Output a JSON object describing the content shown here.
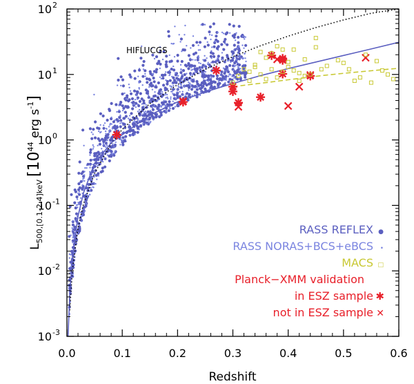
{
  "chart_data": {
    "type": "scatter",
    "title": "",
    "xlabel": "Redshift",
    "ylabel_main": "L",
    "ylabel_sub": "500,[0.1-2.4]keV",
    "ylabel_units": "[10",
    "ylabel_exp": "44",
    "ylabel_units2": " erg s",
    "ylabel_exp2": "-1",
    "ylabel_close": "]",
    "xlim": [
      0.0,
      0.6
    ],
    "ylim": [
      0.001,
      100
    ],
    "yscale": "log",
    "xticks": [
      0.0,
      0.1,
      0.2,
      0.3,
      0.4,
      0.5,
      0.6
    ],
    "xtick_labels": [
      "0.0",
      "0.1",
      "0.2",
      "0.3",
      "0.4",
      "0.5",
      "0.6"
    ],
    "ytick_exponents": [
      -3,
      -2,
      -1,
      0,
      1,
      2
    ],
    "ytick_base": "10",
    "ytick_exp_labels": [
      "-3",
      "-2",
      "-1",
      "0",
      "1",
      "2"
    ],
    "annotation": "HIFLUCGS",
    "legend": {
      "position": "bottom-right",
      "entries": [
        {
          "label": "RASS REFLEX",
          "symbol": "●",
          "color": "#5b5fc0"
        },
        {
          "label": "RASS NORAS+BCS+eBCS",
          "symbol": "•",
          "color": "#7b85e0"
        },
        {
          "label": "MACS",
          "symbol": "□",
          "color": "#c8c832"
        },
        {
          "label": "Planck−XMM validation",
          "symbol": "",
          "color": "#e8202a"
        },
        {
          "label": "in ESZ sample",
          "symbol": "✱",
          "color": "#e8202a"
        },
        {
          "label": "not in ESZ sample",
          "symbol": "✕",
          "color": "#e8202a"
        }
      ]
    },
    "curves": [
      {
        "name": "HIFLUCGS flux limit",
        "style": "dotted",
        "color": "#000000",
        "x": [
          0.005,
          0.01,
          0.02,
          0.03,
          0.05,
          0.08,
          0.1,
          0.15,
          0.2,
          0.25,
          0.3,
          0.35,
          0.4,
          0.45,
          0.5,
          0.55,
          0.6
        ],
        "y": [
          0.0025,
          0.0105,
          0.045,
          0.105,
          0.31,
          0.88,
          1.45,
          3.6,
          7.0,
          12.0,
          18.7,
          27.5,
          38.5,
          52.0,
          68.0,
          86.0,
          105.0
        ]
      },
      {
        "name": "RASS flux limit",
        "style": "solid",
        "color": "#5b5fc0",
        "x": [
          0.002,
          0.005,
          0.01,
          0.02,
          0.03,
          0.05,
          0.08,
          0.1,
          0.15,
          0.2,
          0.25,
          0.3,
          0.35,
          0.4,
          0.45,
          0.5,
          0.55,
          0.6
        ],
        "y": [
          0.00088,
          0.0041,
          0.0165,
          0.068,
          0.155,
          0.44,
          0.9,
          1.2,
          2.4,
          3.8,
          5.4,
          7.3,
          9.6,
          12.3,
          15.5,
          19.5,
          24.5,
          31.0
        ]
      },
      {
        "name": "MACS flux limit",
        "style": "dashed",
        "color": "#c8c832",
        "x": [
          0.3,
          0.33,
          0.36,
          0.4,
          0.43,
          0.46,
          0.5,
          0.53,
          0.56,
          0.6
        ],
        "y": [
          6.5,
          7.0,
          7.5,
          8.3,
          8.9,
          9.6,
          10.4,
          11.0,
          11.6,
          12.4
        ]
      }
    ],
    "series": [
      {
        "name": "Planck-XMM in ESZ sample",
        "marker": "asterisk",
        "color": "#e8202a",
        "x": [
          0.09,
          0.21,
          0.27,
          0.3,
          0.31,
          0.35,
          0.37,
          0.39,
          0.39,
          0.44,
          0.3,
          0.39
        ],
        "y": [
          1.2,
          3.8,
          11.5,
          5.5,
          3.7,
          4.5,
          19.5,
          17.5,
          10.2,
          9.5,
          6.5,
          16.5
        ]
      },
      {
        "name": "Planck-XMM not in ESZ sample",
        "marker": "x",
        "color": "#e8202a",
        "x": [
          0.21,
          0.31,
          0.38,
          0.4,
          0.42,
          0.44,
          0.54
        ],
        "y": [
          3.9,
          3.2,
          17.0,
          3.3,
          6.5,
          9.8,
          18.0
        ]
      },
      {
        "name": "MACS",
        "marker": "square",
        "color": "#c8c832",
        "x": [
          0.3,
          0.31,
          0.32,
          0.33,
          0.34,
          0.35,
          0.35,
          0.36,
          0.37,
          0.38,
          0.38,
          0.39,
          0.4,
          0.41,
          0.42,
          0.43,
          0.44,
          0.45,
          0.45,
          0.46,
          0.5,
          0.51,
          0.53,
          0.55,
          0.56,
          0.57,
          0.58,
          0.33,
          0.36,
          0.4,
          0.42,
          0.47,
          0.49,
          0.52,
          0.54,
          0.39,
          0.41,
          0.34,
          0.37,
          0.43,
          0.59
        ],
        "y": [
          7.5,
          9.5,
          12.0,
          8.0,
          14.0,
          10.0,
          22.0,
          8.5,
          12.0,
          9.0,
          27.0,
          11.0,
          13.0,
          24.0,
          8.0,
          17.0,
          10.0,
          36.0,
          26.0,
          12.0,
          15.0,
          12.0,
          9.0,
          7.5,
          16.0,
          11.5,
          10.0,
          11.0,
          18.0,
          15.5,
          10.5,
          13.5,
          16.5,
          8.0,
          20.0,
          24.0,
          11.5,
          13.0,
          21.0,
          9.5,
          8.5
        ]
      }
    ],
    "notes": "Dense clouds of RASS REFLEX (larger dots) and RASS NORAS+BCS+eBCS (small dots) clusters populate z=0.0-0.33, L=0.01-30 above the solid flux-limit curve."
  }
}
